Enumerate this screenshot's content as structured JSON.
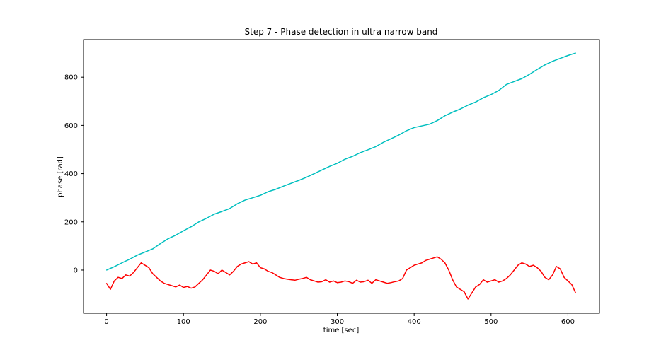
{
  "chart_data": {
    "type": "line",
    "title": "Step 7 - Phase detection in ultra narrow band",
    "xlabel": "time [sec]",
    "ylabel": "phase [rad]",
    "xlim": [
      -30,
      641
    ],
    "ylim": [
      -179,
      956
    ],
    "xticks": [
      0,
      100,
      200,
      300,
      400,
      500,
      600
    ],
    "yticks": [
      0,
      200,
      400,
      600,
      800
    ],
    "grid": false,
    "legend": "none",
    "series": [
      {
        "color": "#00bfbf",
        "x": [
          0,
          10,
          20,
          30,
          40,
          50,
          60,
          70,
          80,
          90,
          100,
          110,
          120,
          130,
          140,
          150,
          160,
          170,
          180,
          190,
          200,
          210,
          220,
          230,
          240,
          250,
          260,
          270,
          280,
          290,
          300,
          310,
          320,
          330,
          340,
          350,
          360,
          370,
          380,
          390,
          400,
          410,
          420,
          430,
          440,
          450,
          460,
          470,
          480,
          490,
          500,
          510,
          520,
          530,
          540,
          550,
          560,
          570,
          580,
          590,
          600,
          610
        ],
        "values": [
          0,
          14,
          30,
          45,
          62,
          75,
          88,
          110,
          130,
          145,
          163,
          180,
          200,
          215,
          232,
          243,
          255,
          275,
          290,
          300,
          310,
          325,
          335,
          348,
          360,
          372,
          385,
          400,
          415,
          430,
          443,
          460,
          472,
          487,
          499,
          512,
          530,
          545,
          560,
          578,
          591,
          598,
          605,
          620,
          640,
          655,
          668,
          684,
          697,
          715,
          728,
          745,
          770,
          782,
          794,
          812,
          832,
          851,
          866,
          878,
          890,
          900
        ]
      },
      {
        "color": "#ff0000",
        "x": [
          0,
          5,
          10,
          15,
          20,
          25,
          30,
          35,
          40,
          45,
          50,
          55,
          60,
          65,
          70,
          75,
          80,
          85,
          90,
          95,
          100,
          105,
          110,
          115,
          120,
          125,
          130,
          135,
          140,
          145,
          150,
          155,
          160,
          165,
          170,
          175,
          180,
          185,
          190,
          195,
          200,
          205,
          210,
          215,
          220,
          225,
          230,
          235,
          240,
          245,
          250,
          255,
          260,
          265,
          270,
          275,
          280,
          285,
          290,
          295,
          300,
          305,
          310,
          315,
          320,
          325,
          330,
          335,
          340,
          345,
          350,
          355,
          360,
          365,
          370,
          375,
          380,
          385,
          390,
          395,
          400,
          405,
          410,
          415,
          420,
          425,
          430,
          435,
          440,
          445,
          450,
          455,
          460,
          465,
          470,
          475,
          480,
          485,
          490,
          495,
          500,
          505,
          510,
          515,
          520,
          525,
          530,
          535,
          540,
          545,
          550,
          555,
          560,
          565,
          570,
          575,
          580,
          585,
          590,
          595,
          600,
          605,
          610
        ],
        "values": [
          -55,
          -80,
          -45,
          -30,
          -35,
          -20,
          -25,
          -10,
          10,
          30,
          20,
          10,
          -15,
          -30,
          -45,
          -55,
          -60,
          -65,
          -70,
          -62,
          -72,
          -68,
          -75,
          -70,
          -55,
          -40,
          -20,
          0,
          -5,
          -15,
          0,
          -10,
          -20,
          -5,
          15,
          25,
          30,
          35,
          25,
          30,
          10,
          5,
          -5,
          -10,
          -20,
          -30,
          -35,
          -38,
          -40,
          -42,
          -38,
          -35,
          -30,
          -40,
          -45,
          -50,
          -48,
          -40,
          -50,
          -45,
          -52,
          -50,
          -45,
          -48,
          -55,
          -42,
          -50,
          -48,
          -42,
          -55,
          -40,
          -45,
          -50,
          -55,
          -52,
          -48,
          -45,
          -35,
          0,
          10,
          20,
          25,
          30,
          40,
          45,
          50,
          55,
          45,
          30,
          0,
          -40,
          -70,
          -80,
          -90,
          -120,
          -95,
          -70,
          -60,
          -40,
          -50,
          -45,
          -40,
          -50,
          -45,
          -35,
          -20,
          0,
          20,
          30,
          25,
          15,
          20,
          10,
          -5,
          -30,
          -40,
          -20,
          15,
          5,
          -30,
          -45,
          -60,
          -95
        ]
      }
    ]
  }
}
